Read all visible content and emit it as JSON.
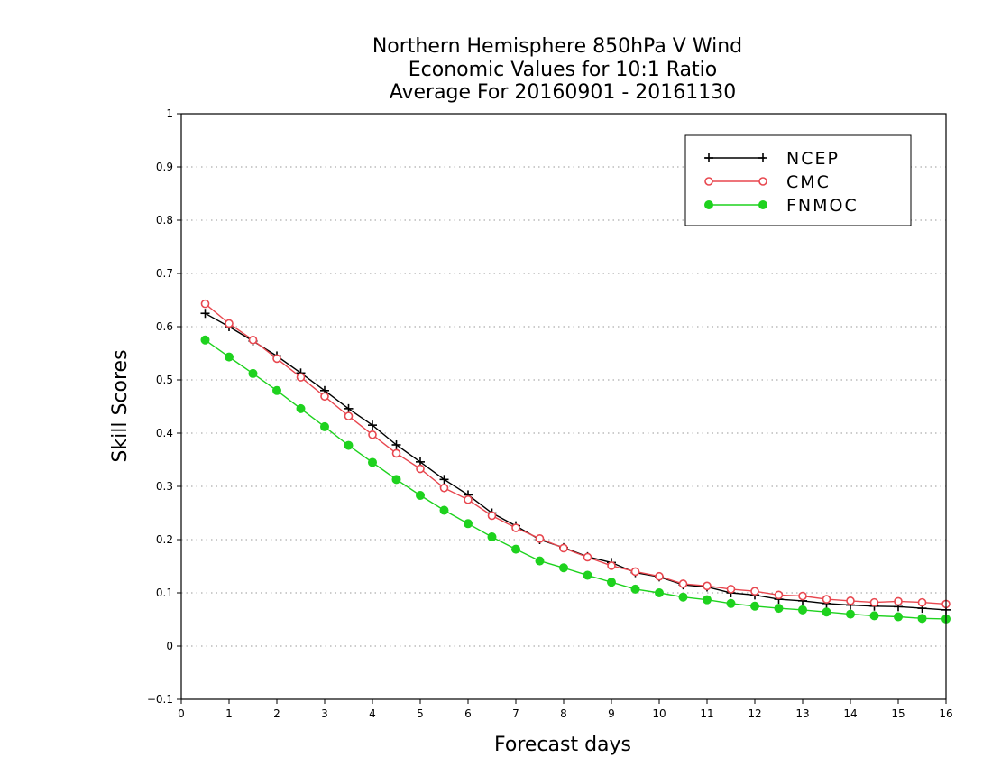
{
  "chart_data": {
    "type": "line",
    "title_lines": [
      "Northern Hemisphere 850hPa V Wind",
      "Economic Values for 10:1 Ratio",
      "Average For 20160901 - 20161130"
    ],
    "xlabel": "Forecast days",
    "ylabel": "Skill Scores",
    "xlim": [
      0,
      16
    ],
    "ylim": [
      -0.1,
      1
    ],
    "x_ticks": [
      "0",
      "1",
      "2",
      "3",
      "4",
      "5",
      "6",
      "7",
      "8",
      "9",
      "10",
      "11",
      "12",
      "13",
      "14",
      "15",
      "16"
    ],
    "y_ticks": [
      "-0.1",
      "0",
      "0.1",
      "0.2",
      "0.3",
      "0.4",
      "0.5",
      "0.6",
      "0.7",
      "0.8",
      "0.9",
      "1"
    ],
    "grid": "dotted horizontal",
    "legend_position": "top-right",
    "x": [
      0.5,
      1,
      1.5,
      2,
      2.5,
      3,
      3.5,
      4,
      4.5,
      5,
      5.5,
      6,
      6.5,
      7,
      7.5,
      8,
      8.5,
      9,
      9.5,
      10,
      10.5,
      11,
      11.5,
      12,
      12.5,
      13,
      13.5,
      14,
      14.5,
      15,
      15.5,
      16
    ],
    "series": [
      {
        "name": "NCEP",
        "color": "#000000",
        "marker": "plus",
        "values": [
          0.625,
          0.6,
          0.573,
          0.545,
          0.513,
          0.48,
          0.446,
          0.415,
          0.378,
          0.346,
          0.313,
          0.284,
          0.25,
          0.226,
          0.2,
          0.185,
          0.168,
          0.157,
          0.138,
          0.13,
          0.115,
          0.111,
          0.1,
          0.096,
          0.088,
          0.085,
          0.08,
          0.077,
          0.075,
          0.074,
          0.071,
          0.068
        ]
      },
      {
        "name": "CMC",
        "color": "#e8474f",
        "marker": "open-circle",
        "values": [
          0.643,
          0.606,
          0.575,
          0.54,
          0.505,
          0.469,
          0.432,
          0.397,
          0.362,
          0.333,
          0.297,
          0.275,
          0.245,
          0.222,
          0.202,
          0.184,
          0.167,
          0.151,
          0.14,
          0.131,
          0.117,
          0.113,
          0.107,
          0.103,
          0.096,
          0.094,
          0.088,
          0.085,
          0.082,
          0.084,
          0.082,
          0.079
        ]
      },
      {
        "name": "FNMOC",
        "color": "#1ed21e",
        "marker": "filled-circle",
        "values": [
          0.575,
          0.543,
          0.512,
          0.48,
          0.446,
          0.412,
          0.377,
          0.345,
          0.313,
          0.283,
          0.255,
          0.23,
          0.205,
          0.182,
          0.16,
          0.147,
          0.133,
          0.12,
          0.107,
          0.1,
          0.092,
          0.087,
          0.08,
          0.075,
          0.071,
          0.068,
          0.064,
          0.06,
          0.057,
          0.055,
          0.052,
          0.051
        ]
      }
    ]
  }
}
